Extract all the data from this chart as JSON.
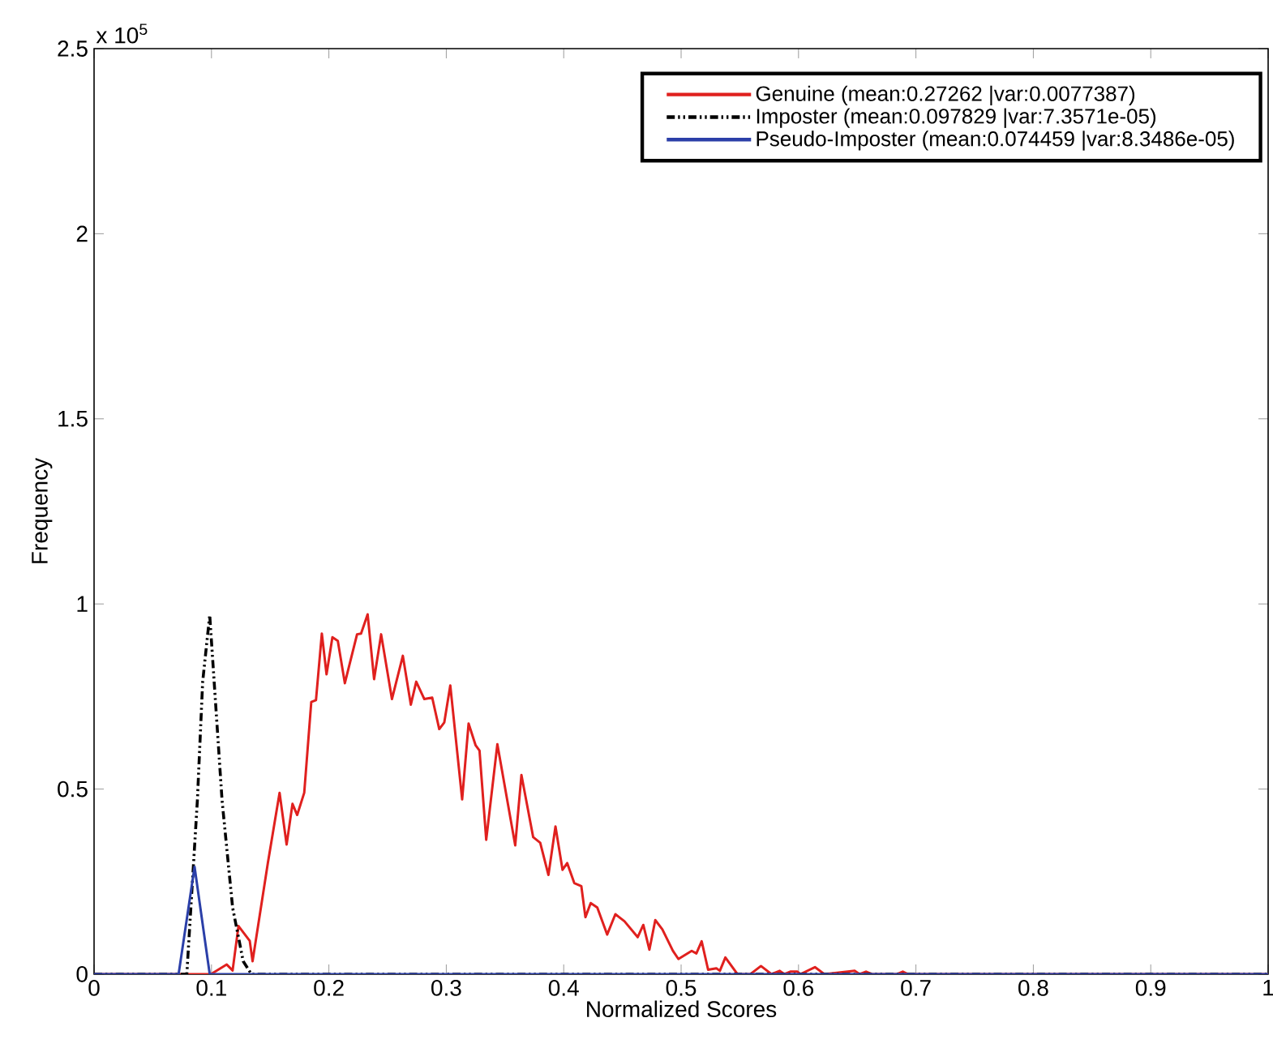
{
  "chart_data": {
    "type": "line",
    "xlabel": "Normalized Scores",
    "ylabel": "Frequency",
    "annotations": [
      "x 10$^{5}$"
    ],
    "xlim": [
      0,
      1
    ],
    "ylim": [
      0,
      2.5
    ],
    "xticks": [
      0,
      0.1,
      0.2,
      0.3,
      0.4,
      0.5,
      0.6,
      0.7,
      0.8,
      0.9,
      1
    ],
    "yticks": [
      0,
      0.5,
      1,
      1.5,
      2,
      2.5
    ],
    "legend": "top right",
    "grid": false,
    "marker": "none",
    "series": [
      {
        "name": "Genuine (mean:0.27262 |var:0.0077387)",
        "color": "#e0201e",
        "line_style": "solid",
        "x": [
          0,
          0.0995,
          0.113,
          0.118,
          0.123,
          0.1326,
          0.135,
          0.148,
          0.158,
          0.164,
          0.169,
          0.173,
          0.179,
          0.185,
          0.189,
          0.194,
          0.198,
          0.203,
          0.2076,
          0.2136,
          0.224,
          0.2274,
          0.233,
          0.2385,
          0.2445,
          0.2537,
          0.263,
          0.2698,
          0.2744,
          0.2813,
          0.288,
          0.294,
          0.2983,
          0.3034,
          0.3135,
          0.319,
          0.325,
          0.3283,
          0.334,
          0.3435,
          0.3587,
          0.364,
          0.374,
          0.38,
          0.387,
          0.393,
          0.399,
          0.403,
          0.409,
          0.415,
          0.4185,
          0.423,
          0.4286,
          0.437,
          0.444,
          0.4517,
          0.463,
          0.4678,
          0.473,
          0.478,
          0.484,
          0.493,
          0.4977,
          0.509,
          0.513,
          0.5175,
          0.523,
          0.53,
          0.533,
          0.5377,
          0.548,
          0.559,
          0.568,
          0.577,
          0.584,
          0.588,
          0.593,
          0.599,
          0.6015,
          0.614,
          0.622,
          0.648,
          0.652,
          0.6575,
          0.6625,
          0.684,
          0.6888,
          0.6934,
          1
        ],
        "values": [
          0,
          0,
          0.026,
          0.01,
          0.13,
          0.09,
          0.035,
          0.3,
          0.49,
          0.35,
          0.46,
          0.43,
          0.49,
          0.735,
          0.74,
          0.92,
          0.81,
          0.91,
          0.9,
          0.786,
          0.918,
          0.92,
          0.972,
          0.797,
          0.918,
          0.743,
          0.86,
          0.728,
          0.79,
          0.743,
          0.747,
          0.662,
          0.68,
          0.78,
          0.472,
          0.677,
          0.618,
          0.604,
          0.363,
          0.621,
          0.348,
          0.538,
          0.37,
          0.355,
          0.268,
          0.399,
          0.282,
          0.3,
          0.246,
          0.238,
          0.154,
          0.192,
          0.18,
          0.107,
          0.162,
          0.143,
          0.1,
          0.133,
          0.066,
          0.146,
          0.121,
          0.063,
          0.041,
          0.063,
          0.056,
          0.089,
          0.012,
          0.016,
          0.009,
          0.045,
          0,
          0,
          0.022,
          0,
          0.009,
          0,
          0.007,
          0.007,
          0,
          0.019,
          0,
          0.009,
          0,
          0.007,
          0,
          0,
          0.007,
          0,
          0
        ]
      },
      {
        "name": "Imposter (mean:0.097829 |var:7.3571e-05)",
        "color": "#000000",
        "line_style": "dashdotted",
        "x": [
          0,
          0.079,
          0.088,
          0.0925,
          0.0985,
          0.109,
          0.118,
          0.127,
          0.134,
          1
        ],
        "values": [
          0,
          0,
          0.47,
          0.79,
          0.97,
          0.47,
          0.18,
          0.035,
          0,
          0
        ]
      },
      {
        "name": "Pseudo-Imposter (mean:0.074459 |var:8.3486e-05)",
        "color": "#2b3fa8",
        "line_style": "solid",
        "x": [
          0,
          0.072,
          0.0856,
          0.0985,
          1
        ],
        "values": [
          0,
          0,
          0.29,
          0,
          0
        ]
      }
    ]
  }
}
